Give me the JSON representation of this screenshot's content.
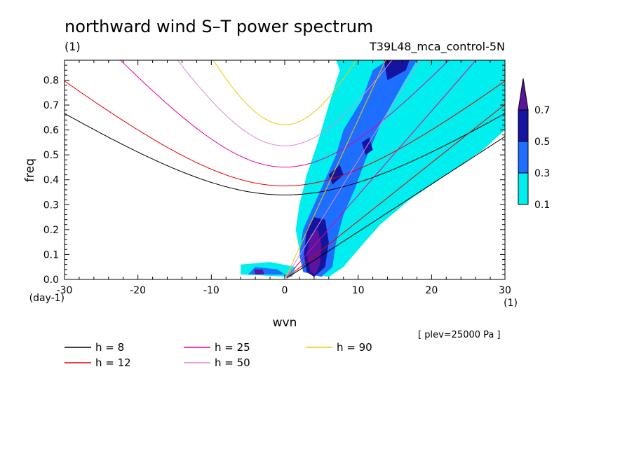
{
  "chart_data": {
    "type": "heatmap",
    "title": "northward wind S–T power spectrum",
    "units_label": "(1)",
    "run_label": "T39L48_mca_control-5N",
    "xlabel": "wvn",
    "ylabel": "freq",
    "x_unit": "(1)",
    "y_unit": "(day-1)",
    "xlim": [
      -30,
      30
    ],
    "ylim": [
      0.0,
      0.88
    ],
    "x_ticks": [
      -30,
      -20,
      -10,
      0,
      10,
      20,
      30
    ],
    "x_tick_labels": [
      "-30",
      "-20",
      "-10",
      "0",
      "10",
      "20",
      "30"
    ],
    "y_ticks": [
      0.0,
      0.1,
      0.2,
      0.3,
      0.4,
      0.5,
      0.6,
      0.7,
      0.8
    ],
    "y_tick_labels": [
      "0.0",
      "0.1",
      "0.2",
      "0.3",
      "0.4",
      "0.5",
      "0.6",
      "0.7",
      "0.8"
    ],
    "note": "[ plev=25000 Pa ]",
    "colorbar": {
      "levels": [
        0.1,
        0.3,
        0.5,
        0.7
      ],
      "labels": [
        "0.1",
        "0.3",
        "0.5",
        "0.7"
      ],
      "colors": [
        "#00eeee",
        "#1e6eff",
        "#1414a0",
        "#5a14a0"
      ]
    },
    "contour_regions": [
      {
        "level": 0.1,
        "polygon": [
          [
            4.5,
            0.02
          ],
          [
            3.5,
            0.05
          ],
          [
            2.0,
            0.12
          ],
          [
            1.5,
            0.2
          ],
          [
            2.0,
            0.3
          ],
          [
            3.0,
            0.42
          ],
          [
            4.5,
            0.55
          ],
          [
            6.0,
            0.7
          ],
          [
            7.5,
            0.84
          ],
          [
            9.0,
            0.88
          ],
          [
            30.0,
            0.88
          ],
          [
            30.0,
            0.6
          ],
          [
            27.0,
            0.52
          ],
          [
            22.0,
            0.42
          ],
          [
            17.0,
            0.32
          ],
          [
            13.0,
            0.22
          ],
          [
            10.0,
            0.12
          ],
          [
            8.0,
            0.05
          ],
          [
            6.0,
            0.01
          ]
        ]
      },
      {
        "level": 0.1,
        "polygon": [
          [
            -6.0,
            0.02
          ],
          [
            -6.0,
            0.06
          ],
          [
            -2.0,
            0.07
          ],
          [
            1.5,
            0.05
          ],
          [
            1.0,
            0.01
          ]
        ]
      },
      {
        "level": 0.1,
        "polygon": [
          [
            7.0,
            0.88
          ],
          [
            8.0,
            0.8
          ],
          [
            10.0,
            0.76
          ],
          [
            11.0,
            0.82
          ],
          [
            11.5,
            0.88
          ]
        ]
      },
      {
        "level": 0.3,
        "polygon": [
          [
            2.5,
            0.03
          ],
          [
            2.0,
            0.1
          ],
          [
            2.5,
            0.2
          ],
          [
            4.0,
            0.3
          ],
          [
            5.5,
            0.4
          ],
          [
            7.0,
            0.5
          ],
          [
            8.0,
            0.6
          ],
          [
            10.5,
            0.72
          ],
          [
            12.0,
            0.84
          ],
          [
            14.0,
            0.88
          ],
          [
            18.0,
            0.88
          ],
          [
            16.0,
            0.78
          ],
          [
            13.0,
            0.62
          ],
          [
            11.0,
            0.48
          ],
          [
            9.5,
            0.36
          ],
          [
            8.0,
            0.26
          ],
          [
            7.0,
            0.15
          ],
          [
            6.5,
            0.05
          ],
          [
            5.0,
            0.01
          ]
        ]
      },
      {
        "level": 0.3,
        "polygon": [
          [
            -5.0,
            0.02
          ],
          [
            -4.0,
            0.05
          ],
          [
            -1.0,
            0.04
          ],
          [
            0.0,
            0.02
          ]
        ]
      },
      {
        "level": 0.5,
        "polygon": [
          [
            3.0,
            0.03
          ],
          [
            2.6,
            0.1
          ],
          [
            3.0,
            0.2
          ],
          [
            4.0,
            0.25
          ],
          [
            5.5,
            0.24
          ],
          [
            6.0,
            0.15
          ],
          [
            5.5,
            0.05
          ],
          [
            4.0,
            0.01
          ]
        ]
      },
      {
        "level": 0.5,
        "polygon": [
          [
            6.0,
            0.42
          ],
          [
            7.5,
            0.46
          ],
          [
            8.0,
            0.42
          ],
          [
            6.5,
            0.38
          ]
        ]
      },
      {
        "level": 0.5,
        "polygon": [
          [
            10.5,
            0.55
          ],
          [
            11.5,
            0.57
          ],
          [
            12.0,
            0.52
          ],
          [
            11.0,
            0.5
          ]
        ]
      },
      {
        "level": 0.5,
        "polygon": [
          [
            14.0,
            0.8
          ],
          [
            16.5,
            0.84
          ],
          [
            17.0,
            0.88
          ],
          [
            13.5,
            0.88
          ]
        ]
      },
      {
        "level": 0.7,
        "polygon": [
          [
            3.5,
            0.03
          ],
          [
            3.0,
            0.1
          ],
          [
            3.5,
            0.18
          ],
          [
            4.5,
            0.2
          ],
          [
            5.0,
            0.14
          ],
          [
            4.8,
            0.06
          ],
          [
            4.2,
            0.02
          ]
        ]
      },
      {
        "level": 0.7,
        "polygon": [
          [
            -4.0,
            0.02
          ],
          [
            -4.2,
            0.04
          ],
          [
            -3.0,
            0.04
          ],
          [
            -2.8,
            0.02
          ]
        ]
      }
    ],
    "series": [
      {
        "name": "h = 8",
        "h": 8,
        "color": "#000000",
        "width": 1.0
      },
      {
        "name": "h = 12",
        "h": 12,
        "color": "#e60000",
        "width": 1.0
      },
      {
        "name": "h = 25",
        "h": 25,
        "color": "#e6009a",
        "width": 1.0
      },
      {
        "name": "h = 50",
        "h": 50,
        "color": "#dd88dd",
        "width": 1.0
      },
      {
        "name": "h = 90",
        "h": 90,
        "color": "#f0c800",
        "width": 1.0
      }
    ]
  }
}
